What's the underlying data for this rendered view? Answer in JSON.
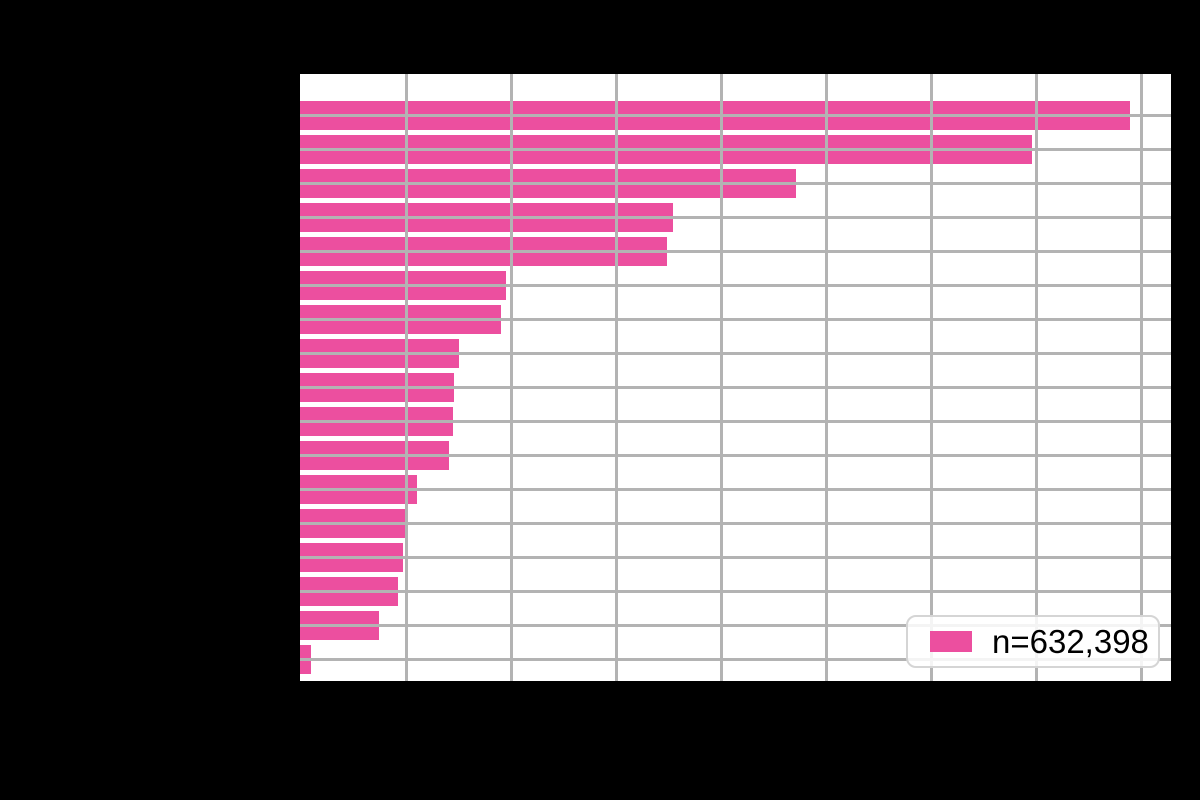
{
  "figure": {
    "background_color": "#000000",
    "plot_background_color": "#ffffff"
  },
  "chart_data": {
    "type": "bar",
    "orientation": "horizontal",
    "title": "",
    "xlabel": "",
    "ylabel": "",
    "categories": [
      "",
      "",
      "",
      "",
      "",
      "",
      "",
      "",
      "",
      "",
      "",
      "",
      "",
      "",
      "",
      "",
      ""
    ],
    "values": [
      7.9,
      6.97,
      4.72,
      3.55,
      3.49,
      1.96,
      1.91,
      1.51,
      1.47,
      1.46,
      1.42,
      1.11,
      1.01,
      0.98,
      0.93,
      0.75,
      0.1
    ],
    "value_scale": "one unit = one vertical gridline interval; axis tick labels not visible in image",
    "xlim": [
      0,
      8.3
    ],
    "num_bars": 17,
    "grid": true,
    "grid_on_top_of_bars": true,
    "colors": {
      "bar": "#ec4f9f",
      "grid": "#b3b3b3"
    },
    "legend": {
      "label": "n=632,398",
      "position": "lower right",
      "swatch_color": "#ec4f9f"
    }
  }
}
